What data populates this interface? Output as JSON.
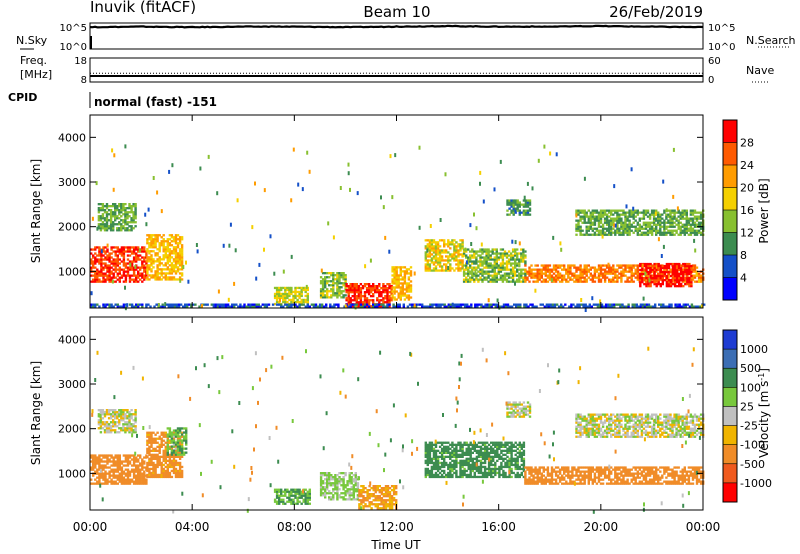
{
  "header": {
    "station": "Inuvik (fitACF)",
    "beam": "Beam 10",
    "date": "26/Feb/2019"
  },
  "noise_panel": {
    "left_label": "N.Sky",
    "right_label": "N.Search",
    "left_ticks": [
      "10^5",
      "10^0"
    ],
    "right_ticks": [
      "10^5",
      "10^0"
    ]
  },
  "freq_panel": {
    "left_label_1": "Freq.",
    "left_label_2": "[MHz]",
    "right_label": "Nave",
    "left_ticks": [
      "18",
      "8"
    ],
    "right_ticks": [
      "60",
      "0"
    ]
  },
  "cpid_panel": {
    "label": "CPID",
    "value": "normal (fast) -151"
  },
  "colorbars": {
    "power": {
      "title": "Power [dB]",
      "ticks": [
        "28",
        "24",
        "20",
        "16",
        "12",
        "8",
        "4"
      ],
      "colors": [
        "#ff0000",
        "#ff5a00",
        "#ff9c00",
        "#f5d000",
        "#88c030",
        "#3c8c50",
        "#1450c8",
        "#0000ff"
      ]
    },
    "velocity": {
      "title": "Velocity [m s",
      "superscript": "-1",
      "title_end": "]",
      "ticks": [
        "1000",
        "500",
        "100",
        "25",
        "-25",
        "-100",
        "-500",
        "-1000"
      ],
      "colors": [
        "#1e3cd2",
        "#3c6eb4",
        "#3c8c50",
        "#78c83c",
        "#c0c0c0",
        "#f0b400",
        "#f08c28",
        "#f05a1e",
        "#ff0000"
      ]
    }
  },
  "power_panel": {
    "ylabel": "Slant Range [km]",
    "yticks": [
      "4000",
      "3000",
      "2000",
      "1000"
    ]
  },
  "velocity_panel": {
    "ylabel": "Slant Range [km]",
    "yticks": [
      "4000",
      "3000",
      "2000",
      "1000"
    ]
  },
  "xaxis": {
    "label": "Time UT",
    "ticks": [
      "00:00",
      "04:00",
      "08:00",
      "12:00",
      "16:00",
      "20:00",
      "00:00"
    ]
  },
  "chart_data": [
    {
      "type": "heatmap",
      "name": "power",
      "x_unit": "hours UT",
      "xlim": [
        0,
        24
      ],
      "ylim": [
        180,
        4500
      ],
      "ylabel": "Slant Range [km]",
      "colorbar_range": [
        0,
        32
      ],
      "echo_regions": [
        {
          "t0": 0.0,
          "t1": 2.2,
          "r0": 750,
          "r1": 1550,
          "level": 28
        },
        {
          "t0": 2.2,
          "t1": 3.6,
          "r0": 800,
          "r1": 1800,
          "level": 20
        },
        {
          "t0": 0.3,
          "t1": 1.8,
          "r0": 1900,
          "r1": 2500,
          "level": 12
        },
        {
          "t0": 7.2,
          "t1": 8.5,
          "r0": 250,
          "r1": 650,
          "level": 16
        },
        {
          "t0": 9.0,
          "t1": 10.0,
          "r0": 400,
          "r1": 950,
          "level": 14
        },
        {
          "t0": 10.0,
          "t1": 11.8,
          "r0": 200,
          "r1": 700,
          "level": 28
        },
        {
          "t0": 11.8,
          "t1": 12.6,
          "r0": 350,
          "r1": 1100,
          "level": 20
        },
        {
          "t0": 13.1,
          "t1": 14.6,
          "r0": 1000,
          "r1": 1700,
          "level": 18
        },
        {
          "t0": 14.6,
          "t1": 17.0,
          "r0": 750,
          "r1": 1500,
          "level": 14
        },
        {
          "t0": 17.0,
          "t1": 24.0,
          "r0": 750,
          "r1": 1150,
          "level": 24
        },
        {
          "t0": 21.5,
          "t1": 23.5,
          "r0": 650,
          "r1": 1150,
          "level": 30
        },
        {
          "t0": 19.0,
          "t1": 24.0,
          "r0": 1800,
          "r1": 2350,
          "level": 12
        },
        {
          "t0": 16.3,
          "t1": 17.2,
          "r0": 2250,
          "r1": 2600,
          "level": 10
        },
        {
          "t0": 0.0,
          "t1": 24.0,
          "r0": 190,
          "r1": 280,
          "level": 6
        }
      ]
    },
    {
      "type": "heatmap",
      "name": "velocity",
      "x_unit": "hours UT",
      "xlim": [
        0,
        24
      ],
      "ylim": [
        180,
        4500
      ],
      "ylabel": "Slant Range [km]",
      "colorbar_range": [
        -1000,
        1000
      ],
      "echo_regions": [
        {
          "t0": 0.0,
          "t1": 2.2,
          "r0": 750,
          "r1": 1400,
          "velocity": -300
        },
        {
          "t0": 2.2,
          "t1": 3.6,
          "r0": 900,
          "r1": 1900,
          "velocity": -150
        },
        {
          "t0": 3.0,
          "t1": 3.8,
          "r0": 1400,
          "r1": 2000,
          "velocity": 80
        },
        {
          "t0": 0.3,
          "t1": 1.8,
          "r0": 1900,
          "r1": 2400,
          "velocity": 0
        },
        {
          "t0": 7.2,
          "t1": 8.6,
          "r0": 300,
          "r1": 650,
          "velocity": 100
        },
        {
          "t0": 9.0,
          "t1": 10.5,
          "r0": 400,
          "r1": 1000,
          "velocity": 40
        },
        {
          "t0": 10.5,
          "t1": 12.0,
          "r0": 200,
          "r1": 700,
          "velocity": -100
        },
        {
          "t0": 13.1,
          "t1": 17.0,
          "r0": 900,
          "r1": 1700,
          "velocity": 150
        },
        {
          "t0": 17.0,
          "t1": 24.0,
          "r0": 750,
          "r1": 1150,
          "velocity": -250
        },
        {
          "t0": 19.0,
          "t1": 24.0,
          "r0": 1800,
          "r1": 2300,
          "velocity": 0
        },
        {
          "t0": 16.3,
          "t1": 17.2,
          "r0": 2250,
          "r1": 2600,
          "velocity": 0
        }
      ]
    },
    {
      "type": "line",
      "name": "noise",
      "x_unit": "hours UT",
      "series": [
        {
          "name": "N.Sky",
          "values_log10": [
            4.2,
            4.3,
            4.2,
            4.3,
            4.3,
            4.2,
            4.3,
            4.4,
            4.3,
            4.3,
            4.4,
            4.3,
            4.2
          ]
        },
        {
          "name": "N.Search",
          "values_log10": [
            4.2,
            4.3,
            4.2,
            4.3,
            4.3,
            4.2,
            4.3,
            4.4,
            4.3,
            4.3,
            4.4,
            4.3,
            4.2
          ]
        }
      ]
    },
    {
      "type": "line",
      "name": "frequency",
      "x_unit": "hours UT",
      "series": [
        {
          "name": "Freq.",
          "values": [
            10.5,
            10.5,
            10.5,
            10.5,
            10.5,
            10.5,
            10.5,
            10.5,
            10.5,
            10.5,
            10.5,
            10.5,
            10.5
          ]
        },
        {
          "name": "Nave",
          "values": [
            22,
            22,
            22,
            22,
            22,
            22,
            22,
            22,
            22,
            22,
            22,
            22,
            22
          ]
        }
      ]
    }
  ]
}
